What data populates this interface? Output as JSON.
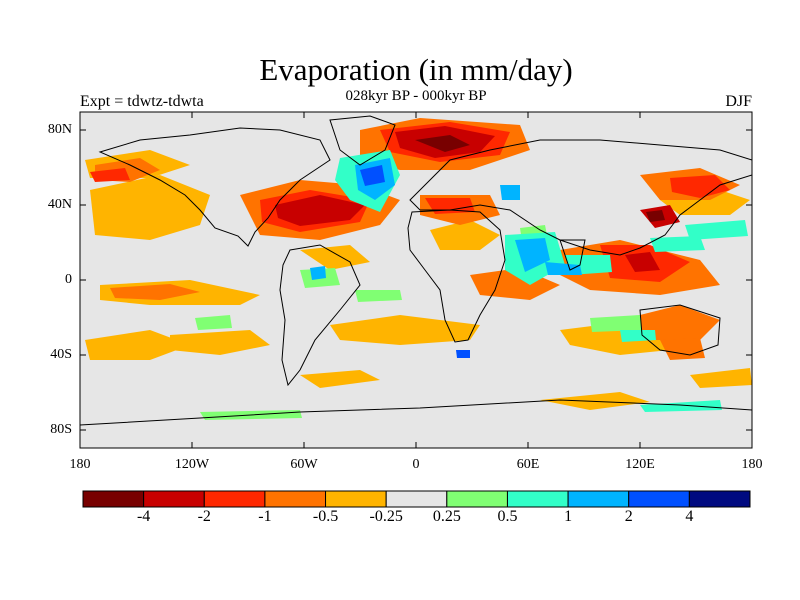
{
  "title": "Evaporation (in mm/day)",
  "subtitle": "028kyr BP - 000kyr BP",
  "left_label": "Expt = tdwtz-tdwta",
  "right_label": "DJF",
  "lat_labels": [
    "80N",
    "40N",
    "0",
    "40S",
    "80S"
  ],
  "lon_labels": [
    "180",
    "120W",
    "60W",
    "0",
    "60E",
    "120E",
    "180"
  ],
  "colorbar": {
    "colors": [
      "#780000",
      "#c80000",
      "#ff2800",
      "#ff7300",
      "#ffb400",
      "#e6e6e6",
      "#80ff73",
      "#32ffc8",
      "#00b4ff",
      "#0050ff",
      "#000a80"
    ],
    "labels": [
      "-4",
      "-2",
      "-1",
      "-0.5",
      "-0.25",
      "0.25",
      "0.5",
      "1",
      "2",
      "4"
    ]
  },
  "colors": {
    "background": "#e6e6e6",
    "coast": "#000000"
  }
}
